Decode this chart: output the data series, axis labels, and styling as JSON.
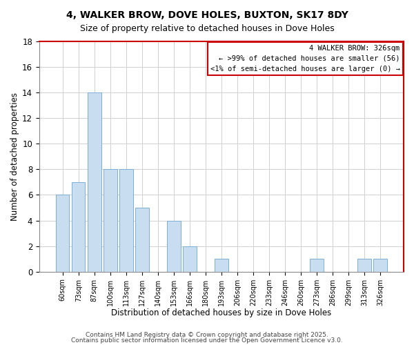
{
  "title": "4, WALKER BROW, DOVE HOLES, BUXTON, SK17 8DY",
  "subtitle": "Size of property relative to detached houses in Dove Holes",
  "xlabel": "Distribution of detached houses by size in Dove Holes",
  "ylabel": "Number of detached properties",
  "bar_labels": [
    "60sqm",
    "73sqm",
    "87sqm",
    "100sqm",
    "113sqm",
    "127sqm",
    "140sqm",
    "153sqm",
    "166sqm",
    "180sqm",
    "193sqm",
    "206sqm",
    "220sqm",
    "233sqm",
    "246sqm",
    "260sqm",
    "273sqm",
    "286sqm",
    "299sqm",
    "313sqm",
    "326sqm"
  ],
  "bar_values": [
    6,
    7,
    14,
    8,
    8,
    5,
    0,
    4,
    2,
    0,
    1,
    0,
    0,
    0,
    0,
    0,
    1,
    0,
    0,
    1,
    1
  ],
  "bar_color": "#c8ddf0",
  "bar_edgecolor": "#7bafd4",
  "highlight_box_color": "#cc0000",
  "ylim": [
    0,
    18
  ],
  "yticks": [
    0,
    2,
    4,
    6,
    8,
    10,
    12,
    14,
    16,
    18
  ],
  "legend_title": "4 WALKER BROW: 326sqm",
  "legend_line1": "← >99% of detached houses are smaller (56)",
  "legend_line2": "<1% of semi-detached houses are larger (0) →",
  "footnote1": "Contains HM Land Registry data © Crown copyright and database right 2025.",
  "footnote2": "Contains public sector information licensed under the Open Government Licence v3.0.",
  "background_color": "#ffffff",
  "grid_color": "#d0d0d0"
}
